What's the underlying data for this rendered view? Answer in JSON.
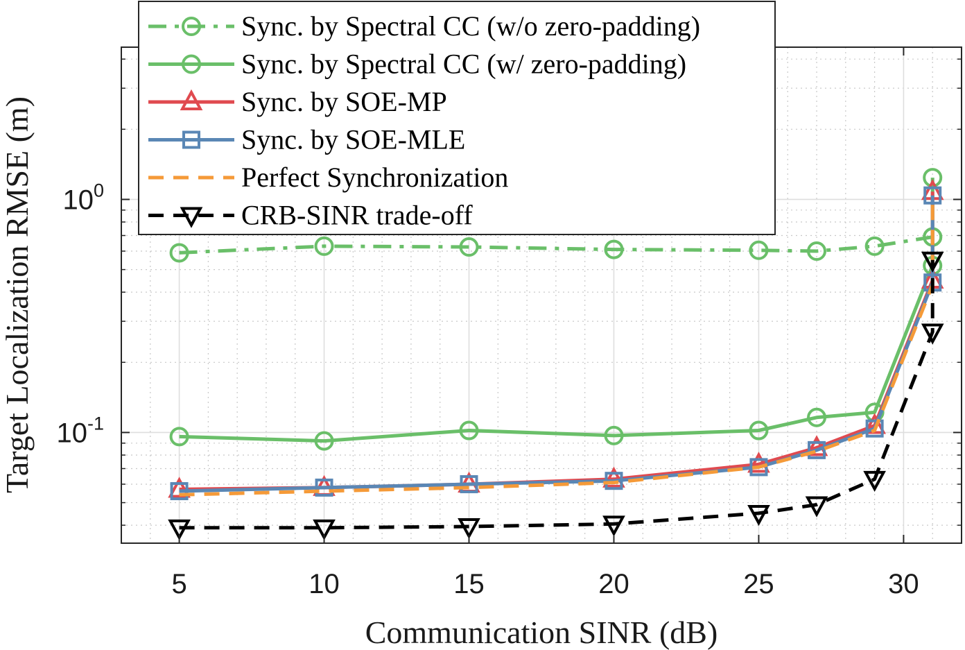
{
  "chart_data": {
    "type": "line",
    "xlabel": "Communication SINR (dB)",
    "ylabel": "Target Localization RMSE (m)",
    "xlim": [
      3,
      32
    ],
    "ylim": [
      0.0335,
      4.5
    ],
    "yscale": "log",
    "grid": true,
    "legend_position": "top-left",
    "x_ticks": [
      {
        "value": 5,
        "label": "5"
      },
      {
        "value": 10,
        "label": "10"
      },
      {
        "value": 15,
        "label": "15"
      },
      {
        "value": 20,
        "label": "20"
      },
      {
        "value": 25,
        "label": "25"
      },
      {
        "value": 30,
        "label": "30"
      }
    ],
    "y_ticks": [
      {
        "value": 0.1,
        "base": "10",
        "exp": "-1"
      },
      {
        "value": 1,
        "base": "10",
        "exp": "0"
      }
    ],
    "series": [
      {
        "name": "Sync. by Spectral CC (w/o zero-padding)",
        "color": "#6abf69",
        "dash": "dashdot",
        "marker": "circle",
        "x": [
          5,
          10,
          15,
          20,
          25,
          27,
          29,
          31,
          31
        ],
        "y": [
          0.59,
          0.63,
          0.625,
          0.61,
          0.605,
          0.6,
          0.63,
          0.69,
          0.69
        ]
      },
      {
        "name": "Sync. by Spectral CC (w/ zero-padding)",
        "color": "#6abf69",
        "dash": "solid",
        "marker": "circle",
        "x": [
          5,
          10,
          15,
          20,
          25,
          27,
          29,
          31,
          31
        ],
        "y": [
          0.096,
          0.092,
          0.102,
          0.097,
          0.102,
          0.116,
          0.122,
          0.52,
          1.24
        ]
      },
      {
        "name": "Sync. by SOE-MP",
        "color": "#e04a4f",
        "dash": "solid",
        "marker": "triangle-up",
        "x": [
          5,
          10,
          15,
          20,
          25,
          27,
          29,
          31,
          31
        ],
        "y": [
          0.057,
          0.058,
          0.06,
          0.063,
          0.073,
          0.086,
          0.107,
          0.45,
          1.08
        ]
      },
      {
        "name": "Sync. by SOE-MLE",
        "color": "#5a87b5",
        "dash": "solid",
        "marker": "square",
        "x": [
          5,
          10,
          15,
          20,
          25,
          27,
          29,
          31,
          31
        ],
        "y": [
          0.056,
          0.058,
          0.06,
          0.062,
          0.071,
          0.084,
          0.104,
          0.44,
          1.04
        ]
      },
      {
        "name": "Perfect Synchronization",
        "color": "#f59a38",
        "dash": "dashed",
        "marker": "none",
        "x": [
          5,
          10,
          15,
          20,
          25,
          27,
          29,
          31,
          31
        ],
        "y": [
          0.054,
          0.056,
          0.058,
          0.061,
          0.071,
          0.083,
          0.102,
          0.43,
          1.02
        ]
      },
      {
        "name": "CRB-SINR trade-off",
        "color": "#000000",
        "dash": "dashed",
        "marker": "triangle-down",
        "x": [
          5,
          10,
          15,
          20,
          25,
          27,
          29,
          31,
          31
        ],
        "y": [
          0.039,
          0.039,
          0.0395,
          0.0405,
          0.045,
          0.049,
          0.063,
          0.27,
          0.55
        ]
      }
    ]
  }
}
